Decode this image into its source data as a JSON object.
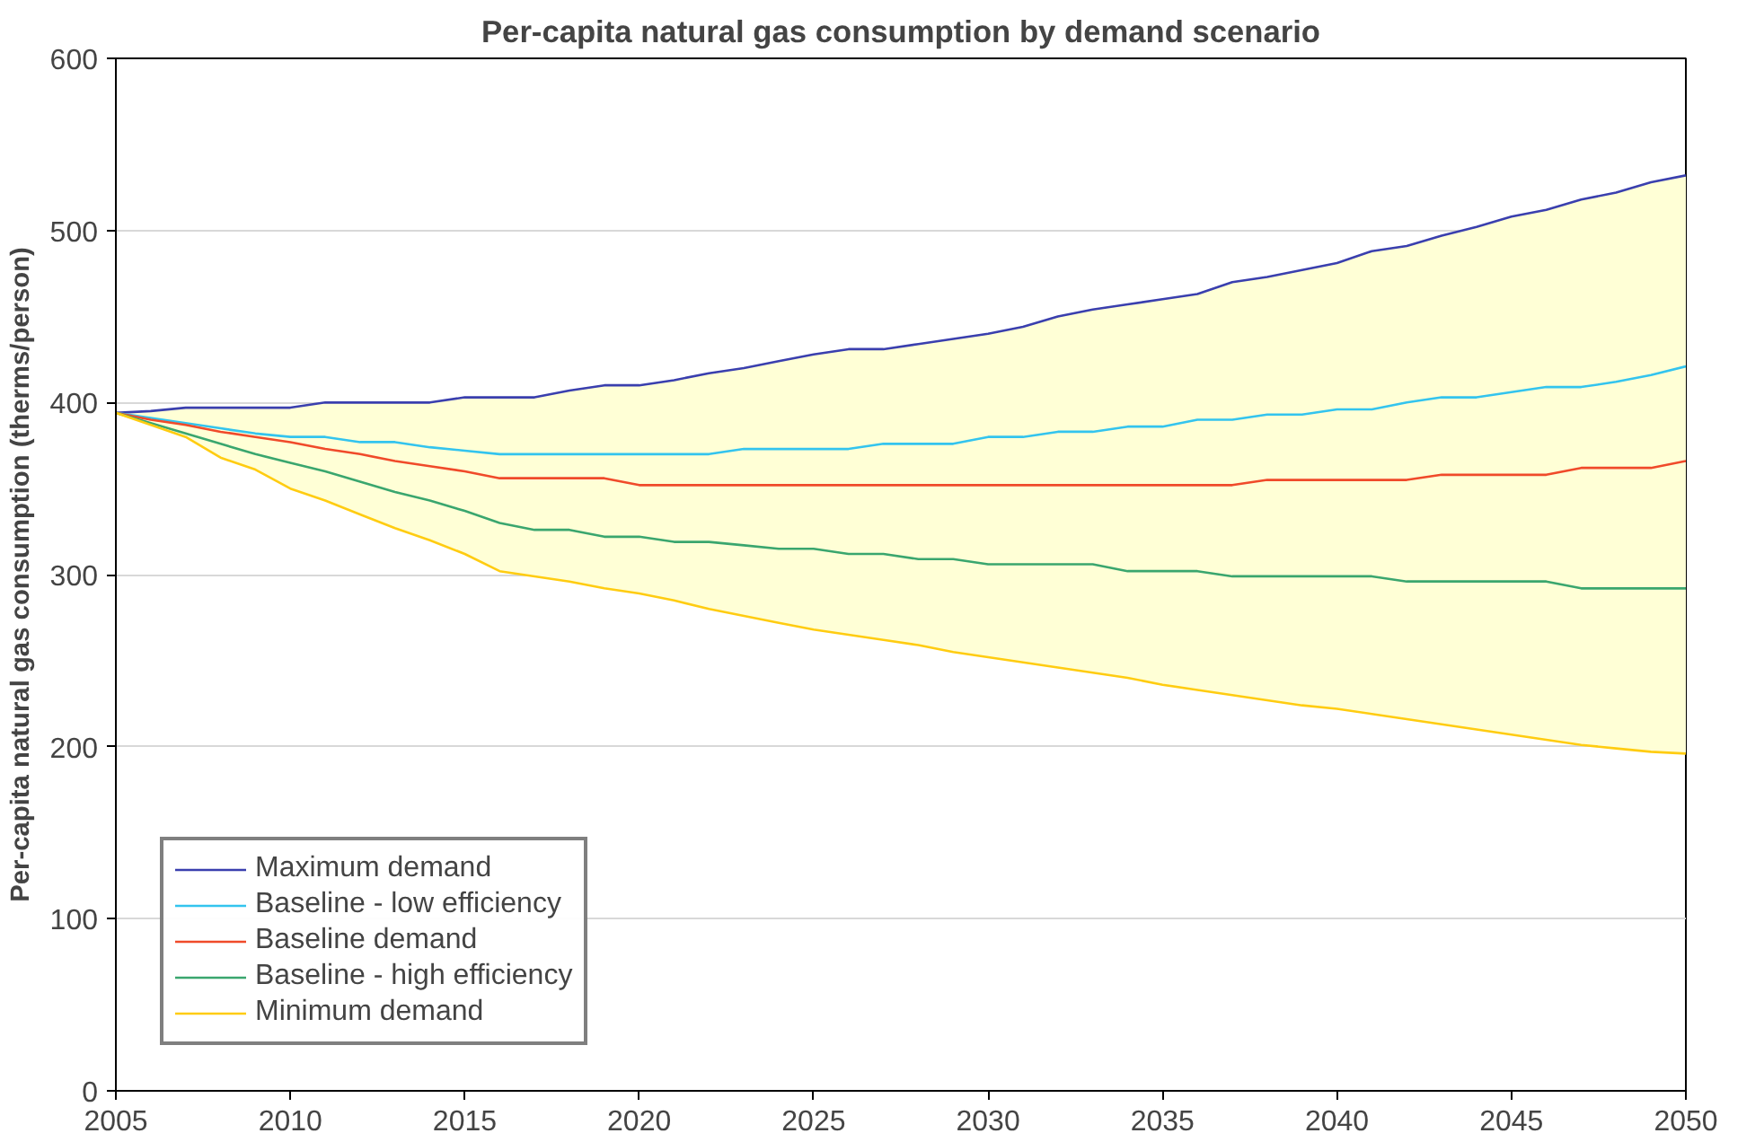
{
  "chart_data": {
    "type": "line",
    "title": "Per-capita natural gas consumption by demand scenario",
    "ylabel": "Per-capita natural gas consumption (therms/person)",
    "x": [
      2005,
      2006,
      2007,
      2008,
      2009,
      2010,
      2011,
      2012,
      2013,
      2014,
      2015,
      2016,
      2017,
      2018,
      2019,
      2020,
      2021,
      2022,
      2023,
      2024,
      2025,
      2026,
      2027,
      2028,
      2029,
      2030,
      2031,
      2032,
      2033,
      2034,
      2035,
      2036,
      2037,
      2038,
      2039,
      2040,
      2041,
      2042,
      2043,
      2044,
      2045,
      2046,
      2047,
      2048,
      2049,
      2050
    ],
    "xlim": [
      2005,
      2050
    ],
    "xticks": [
      2005,
      2010,
      2015,
      2020,
      2025,
      2030,
      2035,
      2040,
      2045,
      2050
    ],
    "ylim": [
      0,
      600
    ],
    "yticks": [
      0,
      100,
      200,
      300,
      400,
      500,
      600
    ],
    "grid": "y",
    "legend": "bottom left",
    "marker": "none",
    "line_style": "solid",
    "series": [
      {
        "name": "Maximum demand",
        "color": "#3a3fae",
        "values": [
          394,
          395,
          397,
          397,
          397,
          397,
          400,
          400,
          400,
          400,
          403,
          403,
          403,
          407,
          410,
          410,
          413,
          417,
          420,
          424,
          428,
          431,
          431,
          434,
          437,
          440,
          444,
          450,
          454,
          457,
          460,
          463,
          470,
          473,
          477,
          481,
          488,
          491,
          497,
          502,
          508,
          512,
          518,
          522,
          528,
          532
        ]
      },
      {
        "name": "Baseline - low efficiency",
        "color": "#33c4ee",
        "values": [
          394,
          391,
          388,
          385,
          382,
          380,
          380,
          377,
          377,
          374,
          372,
          370,
          370,
          370,
          370,
          370,
          370,
          370,
          373,
          373,
          373,
          373,
          376,
          376,
          376,
          380,
          380,
          383,
          383,
          386,
          386,
          390,
          390,
          393,
          393,
          396,
          396,
          400,
          403,
          403,
          406,
          409,
          409,
          412,
          416,
          421
        ]
      },
      {
        "name": "Baseline demand",
        "color": "#f04a2a",
        "values": [
          394,
          390,
          387,
          383,
          380,
          377,
          373,
          370,
          366,
          363,
          360,
          356,
          356,
          356,
          356,
          352,
          352,
          352,
          352,
          352,
          352,
          352,
          352,
          352,
          352,
          352,
          352,
          352,
          352,
          352,
          352,
          352,
          352,
          355,
          355,
          355,
          355,
          355,
          358,
          358,
          358,
          358,
          362,
          362,
          362,
          366
        ],
        "lower": [
          394,
          387,
          380,
          368,
          361,
          350,
          343,
          335,
          327,
          320,
          312,
          302,
          299,
          296,
          292,
          289,
          285,
          280,
          276,
          272,
          268,
          265,
          262,
          259,
          255,
          252,
          249,
          246,
          243,
          240,
          236,
          233,
          230,
          227,
          224,
          222,
          219,
          216,
          213,
          210,
          207,
          204,
          201,
          199,
          197,
          196
        ],
        "upper": [
          394,
          395,
          397,
          397,
          397,
          397,
          400,
          400,
          400,
          400,
          403,
          403,
          403,
          407,
          410,
          410,
          413,
          417,
          420,
          424,
          428,
          431,
          431,
          434,
          437,
          440,
          444,
          450,
          454,
          457,
          460,
          463,
          470,
          473,
          477,
          481,
          488,
          491,
          497,
          502,
          508,
          512,
          518,
          522,
          528,
          532
        ]
      },
      {
        "name": "Baseline - high efficiency",
        "color": "#3aa66e",
        "values": [
          394,
          388,
          382,
          376,
          370,
          365,
          360,
          354,
          348,
          343,
          337,
          330,
          326,
          326,
          322,
          322,
          319,
          319,
          317,
          315,
          315,
          312,
          312,
          309,
          309,
          306,
          306,
          306,
          306,
          302,
          302,
          302,
          299,
          299,
          299,
          299,
          299,
          296,
          296,
          296,
          296,
          296,
          292,
          292,
          292,
          292
        ]
      },
      {
        "name": "Minimum demand",
        "color": "#ffcc11",
        "values": [
          394,
          387,
          380,
          368,
          361,
          350,
          343,
          335,
          327,
          320,
          312,
          302,
          299,
          296,
          292,
          289,
          285,
          280,
          276,
          272,
          268,
          265,
          262,
          259,
          255,
          252,
          249,
          246,
          243,
          240,
          236,
          233,
          230,
          227,
          224,
          222,
          219,
          216,
          213,
          210,
          207,
          204,
          201,
          199,
          197,
          196
        ]
      }
    ]
  }
}
